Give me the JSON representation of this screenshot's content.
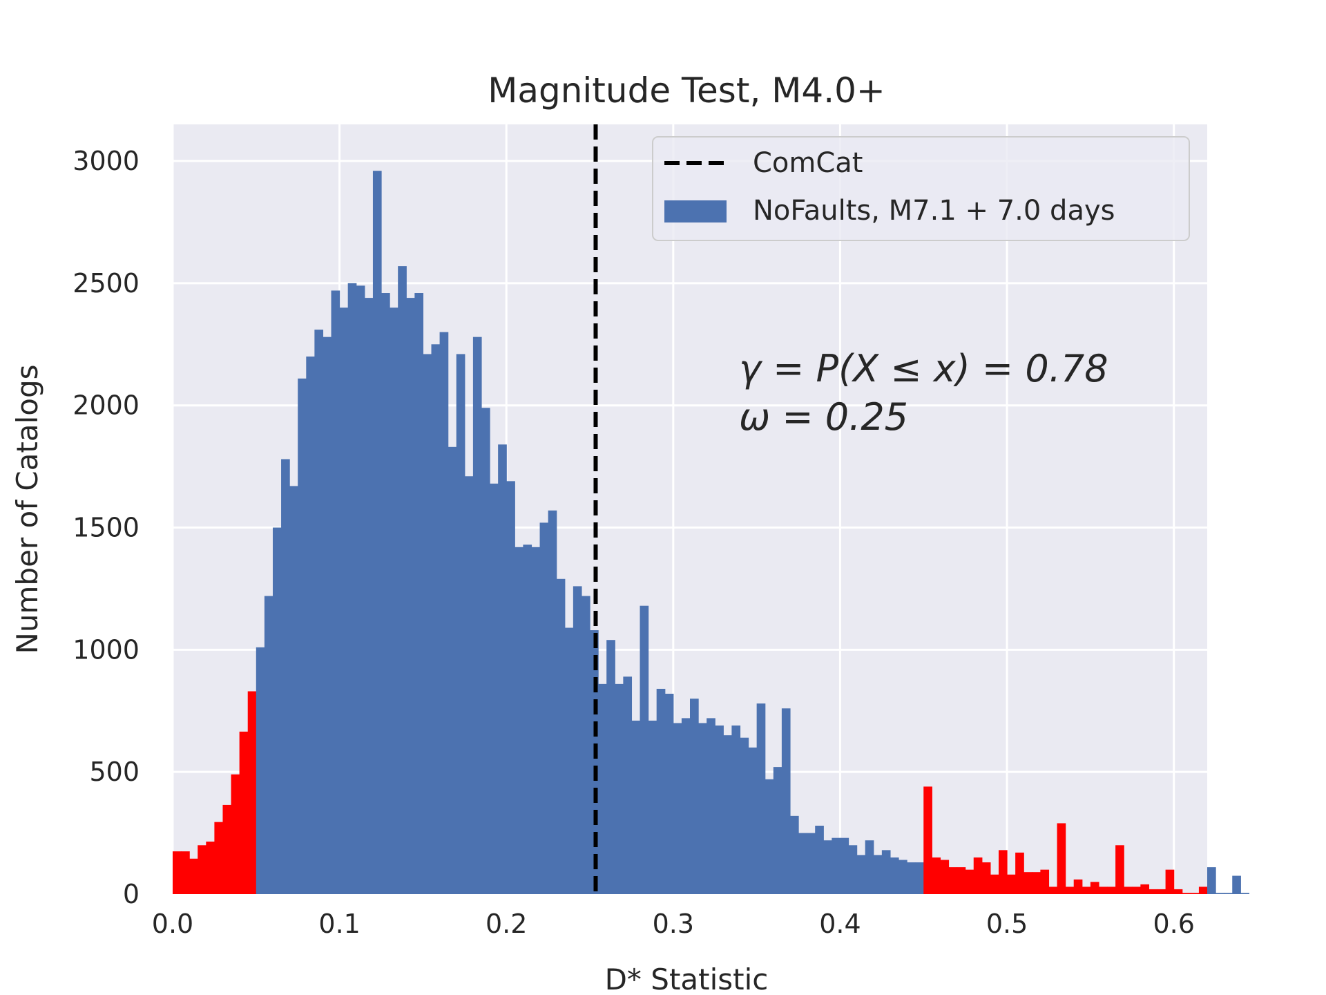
{
  "chart_data": {
    "type": "bar",
    "title": "Magnitude Test, M4.0+",
    "xlabel": "D* Statistic",
    "ylabel": "Number of Catalogs",
    "xlim": [
      0.0,
      0.62
    ],
    "ylim": [
      0,
      3150
    ],
    "xticks": [
      "0.0",
      "0.1",
      "0.2",
      "0.3",
      "0.4",
      "0.5",
      "0.6"
    ],
    "yticks": [
      "0",
      "500",
      "1000",
      "1500",
      "2000",
      "2500",
      "3000"
    ],
    "grid": true,
    "legend_position": "top-right",
    "bin_width": 0.005,
    "bin_start": 0.0,
    "bar_color": "#4C72B0",
    "tail_color": "#FF0000",
    "tail_ranges": [
      [
        0.0,
        0.05
      ],
      [
        0.45,
        0.62
      ]
    ],
    "values": [
      175,
      175,
      145,
      200,
      215,
      295,
      365,
      490,
      665,
      830,
      1010,
      1220,
      1500,
      1780,
      1670,
      2110,
      2200,
      2310,
      2280,
      2470,
      2400,
      2500,
      2490,
      2440,
      2960,
      2460,
      2400,
      2570,
      2440,
      2460,
      2210,
      2250,
      2300,
      1830,
      2210,
      1710,
      2280,
      1990,
      1680,
      1840,
      1690,
      1420,
      1430,
      1420,
      1520,
      1570,
      1290,
      1090,
      1260,
      1220,
      1080,
      860,
      1040,
      860,
      890,
      710,
      1180,
      710,
      840,
      820,
      700,
      720,
      800,
      700,
      720,
      690,
      650,
      690,
      640,
      600,
      780,
      470,
      520,
      760,
      320,
      250,
      250,
      280,
      220,
      230,
      230,
      200,
      160,
      220,
      160,
      180,
      150,
      140,
      130,
      130,
      440,
      150,
      140,
      110,
      110,
      100,
      150,
      130,
      80,
      180,
      80,
      170,
      90,
      90,
      100,
      30,
      290,
      30,
      60,
      30,
      50,
      30,
      30,
      200,
      30,
      30,
      40,
      20,
      20,
      100,
      20,
      5,
      5,
      30,
      110,
      5,
      5,
      75,
      5
    ],
    "vline": {
      "x": 0.2535,
      "label": "ComCat",
      "style": "dashed",
      "color": "#000000"
    },
    "series": [
      {
        "name": "NoFaults, M7.1 + 7.0 days",
        "color": "#4C72B0"
      }
    ],
    "annotations": [
      "γ = P(X ≤ x) = 0.78",
      "ω = 0.25"
    ]
  },
  "legend": {
    "items": [
      {
        "label": "ComCat"
      },
      {
        "label": "NoFaults, M7.1 + 7.0 days"
      }
    ]
  }
}
